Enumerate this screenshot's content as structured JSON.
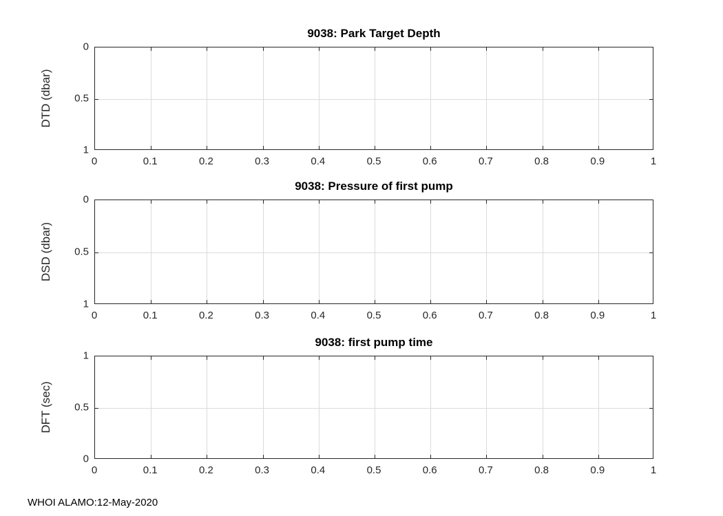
{
  "figure": {
    "footer": "WHOI ALAMO:12-May-2020",
    "background": "#ffffff"
  },
  "colors": {
    "axis": "#262626",
    "grid": "#dbdbdb",
    "title": "#000000",
    "tick_label": "#262626"
  },
  "chart_data": [
    {
      "type": "line",
      "title": "9038: Park Target Depth",
      "xlabel": "",
      "ylabel": "DTD (dbar)",
      "xlim": [
        0,
        1
      ],
      "ylim": [
        0,
        1
      ],
      "ydir": "reverse",
      "grid": true,
      "xticks": [
        0,
        0.1,
        0.2,
        0.3,
        0.4,
        0.5,
        0.6,
        0.7,
        0.8,
        0.9,
        1
      ],
      "xtick_labels": [
        "0",
        "0.1",
        "0.2",
        "0.3",
        "0.4",
        "0.5",
        "0.6",
        "0.7",
        "0.8",
        "0.9",
        "1"
      ],
      "yticks": [
        0,
        0.5,
        1
      ],
      "ytick_labels": [
        "0",
        "0.5",
        "1"
      ],
      "series": []
    },
    {
      "type": "line",
      "title": "9038: Pressure of first pump",
      "xlabel": "",
      "ylabel": "DSD (dbar)",
      "xlim": [
        0,
        1
      ],
      "ylim": [
        0,
        1
      ],
      "ydir": "reverse",
      "grid": true,
      "xticks": [
        0,
        0.1,
        0.2,
        0.3,
        0.4,
        0.5,
        0.6,
        0.7,
        0.8,
        0.9,
        1
      ],
      "xtick_labels": [
        "0",
        "0.1",
        "0.2",
        "0.3",
        "0.4",
        "0.5",
        "0.6",
        "0.7",
        "0.8",
        "0.9",
        "1"
      ],
      "yticks": [
        0,
        0.5,
        1
      ],
      "ytick_labels": [
        "0",
        "0.5",
        "1"
      ],
      "series": []
    },
    {
      "type": "line",
      "title": "9038: first pump time",
      "xlabel": "",
      "ylabel": "DFT (sec)",
      "xlim": [
        0,
        1
      ],
      "ylim": [
        0,
        1
      ],
      "ydir": "normal",
      "grid": true,
      "xticks": [
        0,
        0.1,
        0.2,
        0.3,
        0.4,
        0.5,
        0.6,
        0.7,
        0.8,
        0.9,
        1
      ],
      "xtick_labels": [
        "0",
        "0.1",
        "0.2",
        "0.3",
        "0.4",
        "0.5",
        "0.6",
        "0.7",
        "0.8",
        "0.9",
        "1"
      ],
      "yticks": [
        0,
        0.5,
        1
      ],
      "ytick_labels": [
        "0",
        "0.5",
        "1"
      ],
      "series": []
    }
  ]
}
